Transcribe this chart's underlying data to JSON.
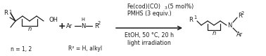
{
  "bg_color": "#ffffff",
  "text_color": "#1a1a1a",
  "figsize": [
    3.78,
    0.8
  ],
  "dpi": 100,
  "r1_label": "R",
  "r1_sup": "1",
  "oh_label": "OH",
  "n_label": "n",
  "n_eq": "n = 1, 2",
  "plus": "+",
  "ar_label": "Ar",
  "nh_n": "N",
  "nh_h": "H",
  "r2_label": "R",
  "r2_sup": "2",
  "r2_eq": "R² = H, alkyl",
  "cond1a": "Fe(cod)(CO)",
  "cond1b": "3",
  "cond1c": " (5 mol%)",
  "cond2": "PMHS (3 equiv.)",
  "cond3": "EtOH, 50 °C, 20 h",
  "cond4": "light irradiation",
  "prod_r1": "R",
  "prod_r1_sup": "1",
  "prod_n": "N",
  "prod_n_label": "n",
  "prod_r2": "R",
  "prod_r2_sup": "2",
  "prod_ar": "Ar",
  "fs": 6.0,
  "fs_sup": 4.8,
  "fs_cond": 5.8,
  "fs_eq": 5.5
}
